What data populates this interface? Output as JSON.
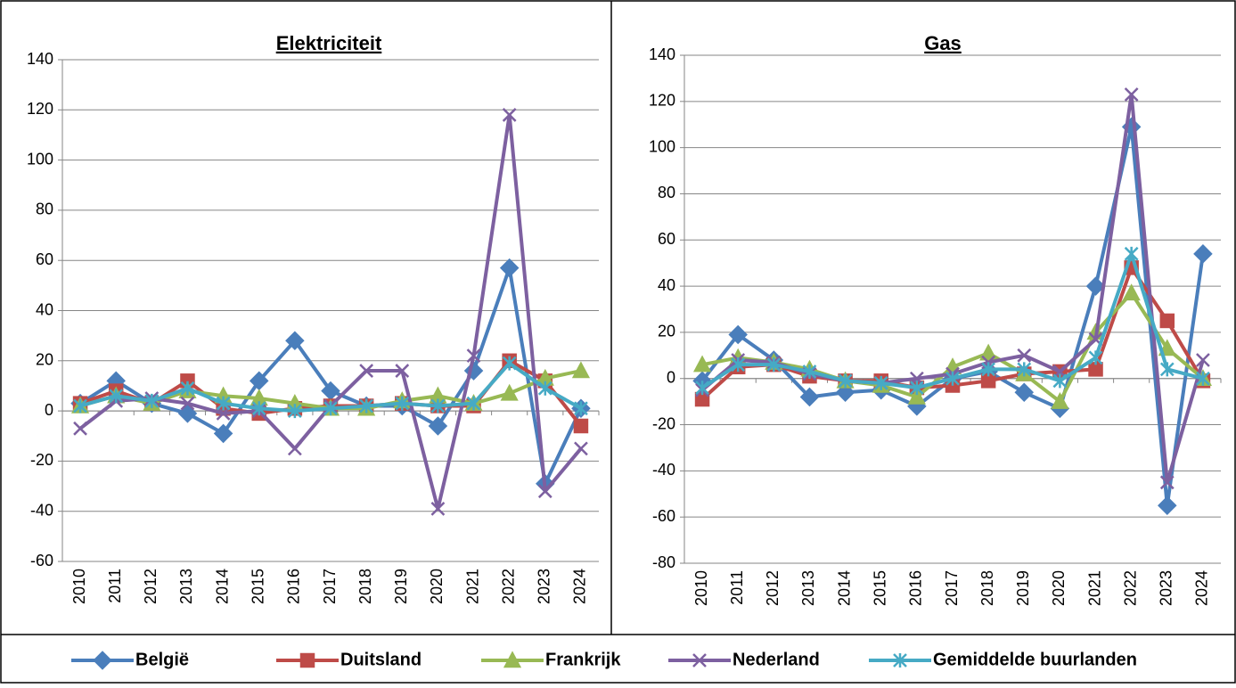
{
  "legend": [
    {
      "name": "België",
      "color": "#4a7ebb",
      "marker": "diamond"
    },
    {
      "name": "Duitsland",
      "color": "#be4b48",
      "marker": "square"
    },
    {
      "name": "Frankrijk",
      "color": "#98b954",
      "marker": "triangle"
    },
    {
      "name": "Nederland",
      "color": "#7d60a0",
      "marker": "x"
    },
    {
      "name": "Gemiddelde buurlanden",
      "color": "#46aac5",
      "marker": "star"
    }
  ],
  "chart_data": [
    {
      "type": "line",
      "title": "Elektriciteit",
      "categories": [
        "2010",
        "2011",
        "2012",
        "2013",
        "2014",
        "2015",
        "2016",
        "2017",
        "2018",
        "2019",
        "2020",
        "2021",
        "2022",
        "2023",
        "2024"
      ],
      "ylim": [
        -60,
        140
      ],
      "yticks": [
        -60,
        -40,
        -20,
        0,
        20,
        40,
        60,
        80,
        100,
        120,
        140
      ],
      "grid": true,
      "series": [
        {
          "values": [
            3,
            12,
            3,
            -1,
            -9,
            12,
            28,
            8,
            2,
            2,
            -6,
            16,
            57,
            -29,
            1
          ]
        },
        {
          "values": [
            3,
            8,
            3,
            12,
            1,
            -1,
            1,
            2,
            2,
            3,
            2,
            2,
            20,
            12,
            -6
          ]
        },
        {
          "values": [
            2,
            6,
            3,
            8,
            6,
            5,
            3,
            1,
            1,
            4,
            6,
            3,
            7,
            13,
            16
          ]
        },
        {
          "values": [
            -7,
            4,
            5,
            3,
            -1,
            0,
            -15,
            2,
            16,
            16,
            -39,
            22,
            118,
            -32,
            -15
          ]
        },
        {
          "values": [
            2,
            6,
            4,
            9,
            3,
            1,
            0,
            1,
            2,
            3,
            2,
            3,
            19,
            9,
            1
          ]
        }
      ]
    },
    {
      "type": "line",
      "title": "Gas",
      "categories": [
        "2010",
        "2011",
        "2012",
        "2013",
        "2014",
        "2015",
        "2016",
        "2017",
        "2018",
        "2019",
        "2020",
        "2021",
        "2022",
        "2023",
        "2024"
      ],
      "ylim": [
        -80,
        140
      ],
      "yticks": [
        -80,
        -60,
        -40,
        -20,
        0,
        20,
        40,
        60,
        80,
        100,
        120,
        140
      ],
      "grid": true,
      "series": [
        {
          "values": [
            -1,
            19,
            8,
            -8,
            -6,
            -5,
            -12,
            0,
            3,
            -6,
            -13,
            40,
            109,
            -55,
            54
          ]
        },
        {
          "values": [
            -9,
            5,
            6,
            1,
            -1,
            -1,
            -4,
            -3,
            -1,
            2,
            3,
            4,
            48,
            25,
            -1
          ]
        },
        {
          "values": [
            6,
            9,
            7,
            4,
            -1,
            -3,
            -8,
            5,
            11,
            2,
            -10,
            20,
            37,
            13,
            0
          ]
        },
        {
          "values": [
            -5,
            8,
            7,
            2,
            -1,
            -2,
            0,
            2,
            7,
            10,
            3,
            17,
            123,
            -45,
            8
          ]
        },
        {
          "values": [
            -4,
            6,
            6,
            3,
            -1,
            -2,
            -4,
            0,
            4,
            4,
            -1,
            9,
            54,
            4,
            0
          ]
        }
      ]
    }
  ]
}
